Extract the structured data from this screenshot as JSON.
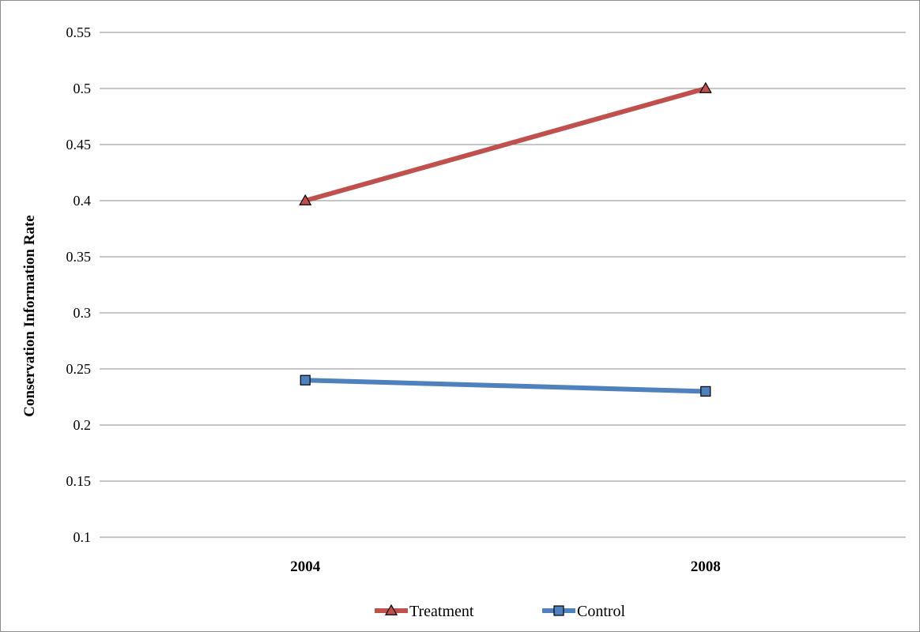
{
  "chart_data": {
    "type": "line",
    "title": "",
    "xlabel": "",
    "ylabel": "Conservation Information Rate",
    "categories": [
      "2004",
      "2008"
    ],
    "ylim": [
      0.1,
      0.55
    ],
    "yticks": [
      "0.1",
      "0.15",
      "0.2",
      "0.25",
      "0.3",
      "0.35",
      "0.4",
      "0.45",
      "0.5",
      "0.55"
    ],
    "grid": true,
    "legend_position": "bottom",
    "series": [
      {
        "name": "Treatment",
        "values": [
          0.4,
          0.5
        ],
        "color": "#c0504d",
        "marker": "triangle"
      },
      {
        "name": "Control",
        "values": [
          0.24,
          0.23
        ],
        "color": "#4f81bd",
        "marker": "square"
      }
    ]
  }
}
